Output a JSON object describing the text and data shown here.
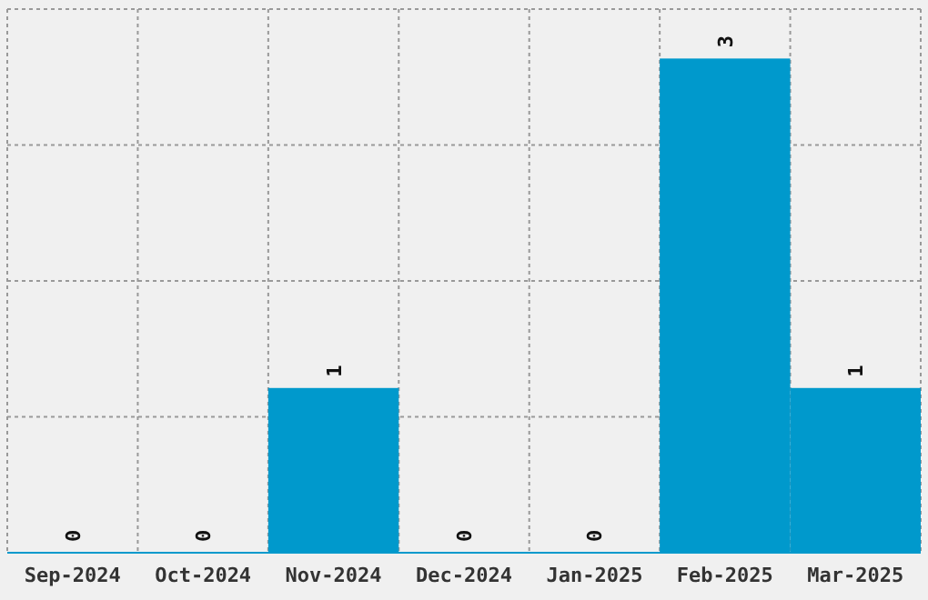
{
  "chart_data": {
    "type": "bar",
    "categories": [
      "Sep-2024",
      "Oct-2024",
      "Nov-2024",
      "Dec-2024",
      "Jan-2025",
      "Feb-2025",
      "Mar-2025"
    ],
    "values": [
      0,
      0,
      1,
      0,
      0,
      3,
      1
    ],
    "color": "#0099cc",
    "ylim": [
      0,
      3.3
    ],
    "yticks": [
      {
        "value": 0.825,
        "label": null
      },
      {
        "value": 1.65,
        "label": null
      },
      {
        "value": 2.475,
        "label": null
      },
      {
        "value": 3.3,
        "label": null
      }
    ],
    "grid": true,
    "data_labels": true,
    "tick_labels": "x"
  }
}
